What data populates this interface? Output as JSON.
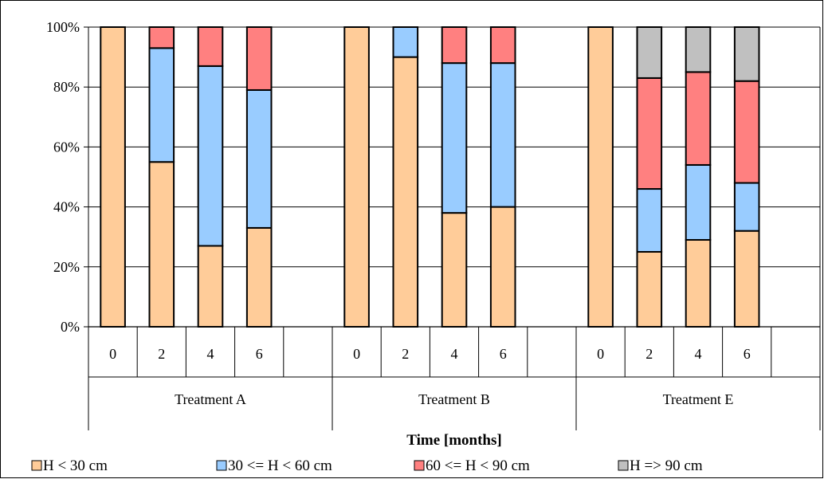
{
  "chart_data": {
    "type": "bar",
    "stacked": true,
    "normalized": true,
    "xlabel": "Time [months]",
    "ylabel": "",
    "ylim": [
      0,
      100
    ],
    "yticks": [
      "0%",
      "20%",
      "40%",
      "60%",
      "80%",
      "100%"
    ],
    "grid": true,
    "legend_position": "bottom",
    "groups": [
      {
        "name": "Treatment A",
        "categories": [
          "0",
          "2",
          "4",
          "6",
          ""
        ]
      },
      {
        "name": "Treatment B",
        "categories": [
          "0",
          "2",
          "4",
          "6",
          ""
        ]
      },
      {
        "name": "Treatment E",
        "categories": [
          "0",
          "2",
          "4",
          "6",
          ""
        ]
      }
    ],
    "series": [
      {
        "name": "H < 30 cm",
        "color": "#ffcc99",
        "values": [
          [
            100,
            55,
            27,
            33,
            null
          ],
          [
            100,
            90,
            38,
            40,
            null
          ],
          [
            100,
            25,
            29,
            32,
            null
          ]
        ]
      },
      {
        "name": "30 <= H < 60 cm",
        "color": "#99ccff",
        "values": [
          [
            0,
            38,
            60,
            46,
            null
          ],
          [
            0,
            10,
            50,
            48,
            null
          ],
          [
            0,
            21,
            25,
            16,
            null
          ]
        ]
      },
      {
        "name": "60 <= H < 90 cm",
        "color": "#ff8080",
        "values": [
          [
            0,
            7,
            13,
            21,
            null
          ],
          [
            0,
            0,
            12,
            12,
            null
          ],
          [
            0,
            37,
            31,
            34,
            null
          ]
        ]
      },
      {
        "name": "H => 90 cm",
        "color": "#c0c0c0",
        "values": [
          [
            0,
            0,
            0,
            0,
            null
          ],
          [
            0,
            0,
            0,
            0,
            null
          ],
          [
            0,
            17,
            15,
            18,
            null
          ]
        ]
      }
    ]
  }
}
